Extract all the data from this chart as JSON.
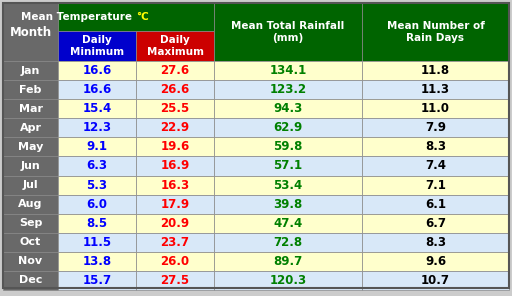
{
  "months": [
    "Jan",
    "Feb",
    "Mar",
    "Apr",
    "May",
    "Jun",
    "Jul",
    "Aug",
    "Sep",
    "Oct",
    "Nov",
    "Dec"
  ],
  "daily_min": [
    16.6,
    16.6,
    15.4,
    12.3,
    9.1,
    6.3,
    5.3,
    6.0,
    8.5,
    11.5,
    13.8,
    15.7
  ],
  "daily_max": [
    27.6,
    26.6,
    25.5,
    22.9,
    19.6,
    16.9,
    16.3,
    17.9,
    20.9,
    23.7,
    26.0,
    27.5
  ],
  "rainfall": [
    134.1,
    123.2,
    94.3,
    62.9,
    59.8,
    57.1,
    53.4,
    39.8,
    47.4,
    72.8,
    89.7,
    120.3
  ],
  "rain_days": [
    11.8,
    11.3,
    11.0,
    7.9,
    8.3,
    7.4,
    7.1,
    6.1,
    6.7,
    8.3,
    9.6,
    10.7
  ],
  "header_bg_dark_green": "#006400",
  "header_bg_blue": "#0000CC",
  "header_bg_red": "#CC0000",
  "month_col_bg": "#696969",
  "row_bg_light_yellow": "#FFFFCC",
  "row_bg_light_blue": "#D8E8F8",
  "min_color": "#0000FF",
  "max_color": "#FF0000",
  "rainfall_color": "#008000",
  "rain_days_color": "#000000",
  "temp_label_white": "Mean Temperature ",
  "temp_label_yellow": "°C",
  "rainfall_header": "Mean Total Rainfall\n(mm)",
  "raindays_header": "Mean Number of\nRain Days",
  "sub_header1": "Daily\nMinimum",
  "sub_header2": "Daily\nMaximum",
  "month_header": "Month"
}
